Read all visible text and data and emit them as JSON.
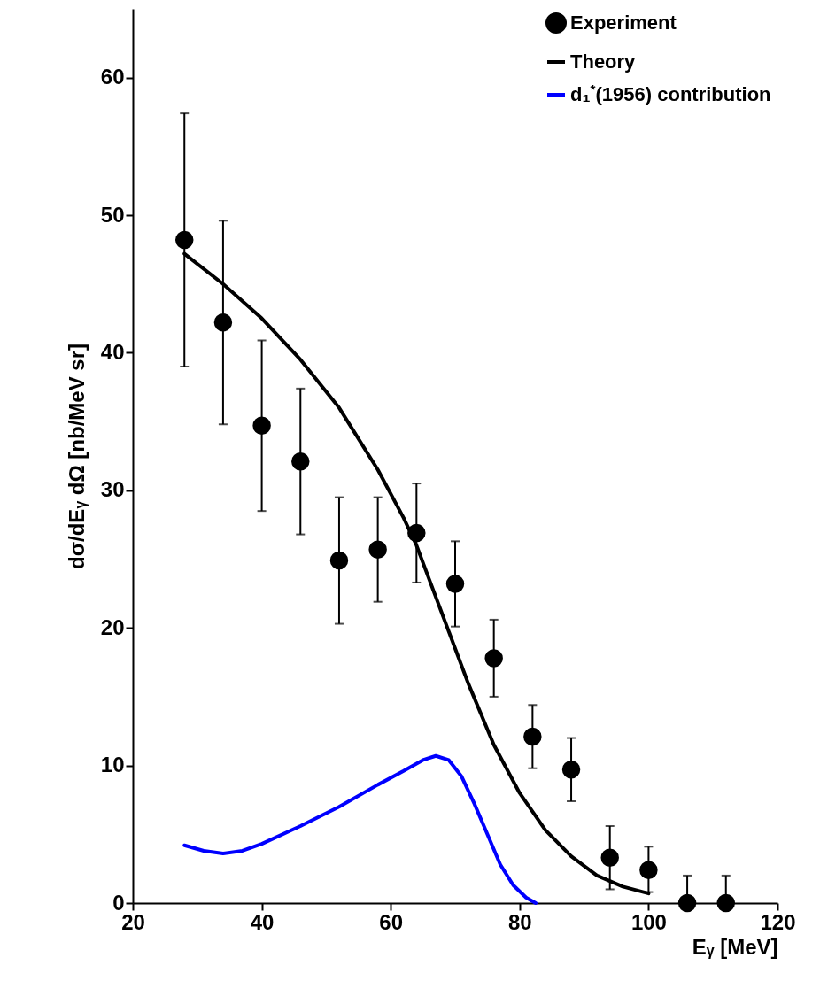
{
  "chart_data": {
    "type": "scatter",
    "xlabel": "Eᵧ [MeV]",
    "ylabel": "dσ/dEᵧ dΩ [nb/MeV sr]",
    "xlim": [
      20,
      120
    ],
    "ylim": [
      0,
      65
    ],
    "xticks": [
      20,
      40,
      60,
      80,
      100,
      120
    ],
    "yticks": [
      0,
      10,
      20,
      30,
      40,
      50,
      60
    ],
    "grid": false,
    "legend": "top right",
    "series": [
      {
        "name": "Experiment",
        "marker": "circle",
        "color": "#000000",
        "x": [
          28,
          34,
          40,
          46,
          52,
          58,
          64,
          70,
          76,
          82,
          88,
          94,
          100,
          106,
          112
        ],
        "values": [
          48.2,
          42.2,
          34.7,
          32.1,
          24.9,
          25.7,
          26.9,
          23.2,
          17.8,
          12.1,
          9.7,
          3.3,
          2.4,
          0,
          0
        ],
        "errors": [
          [
            39.0,
            57.4
          ],
          [
            34.8,
            49.6
          ],
          [
            28.5,
            40.9
          ],
          [
            26.8,
            37.4
          ],
          [
            20.3,
            29.5
          ],
          [
            21.9,
            29.5
          ],
          [
            23.3,
            30.5
          ],
          [
            20.1,
            26.3
          ],
          [
            15.0,
            20.6
          ],
          [
            9.8,
            14.4
          ],
          [
            7.4,
            12.0
          ],
          [
            1.0,
            5.6
          ],
          [
            0.8,
            4.1
          ],
          [
            0,
            2.0
          ],
          [
            0,
            2.0
          ]
        ]
      },
      {
        "name": "Theory",
        "type": "line",
        "color": "#000000",
        "x": [
          28,
          34,
          40,
          46,
          52,
          58,
          62,
          64,
          66,
          68,
          70,
          72,
          76,
          80,
          84,
          88,
          92,
          96,
          100
        ],
        "values": [
          47.2,
          45,
          42.5,
          39.5,
          36,
          31.5,
          28,
          26,
          23.5,
          21,
          18.5,
          16,
          11.5,
          8,
          5.3,
          3.4,
          2,
          1.2,
          0.7
        ]
      },
      {
        "name": "d₁$^{*}$(1956) contribution",
        "type": "line",
        "color": "#0000ff",
        "x": [
          28,
          31,
          34,
          37,
          40,
          46,
          52,
          58,
          62,
          65,
          67,
          69,
          71,
          73,
          75,
          77,
          79,
          81,
          82.5
        ],
        "values": [
          4.2,
          3.8,
          3.6,
          3.8,
          4.3,
          5.6,
          7.0,
          8.6,
          9.6,
          10.4,
          10.7,
          10.4,
          9.2,
          7.2,
          5.0,
          2.8,
          1.3,
          0.4,
          0
        ]
      }
    ]
  }
}
